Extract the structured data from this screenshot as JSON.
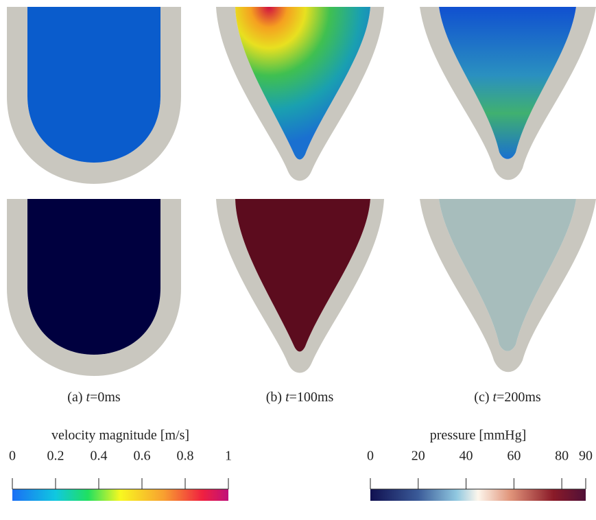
{
  "captions": [
    {
      "tag": "(a)",
      "var": "t",
      "rest": "=0ms"
    },
    {
      "tag": "(b)",
      "var": "t",
      "rest": "=100ms"
    },
    {
      "tag": "(c)",
      "var": "t",
      "rest": "=200ms"
    }
  ],
  "colorbars": [
    {
      "label": "velocity magnitude [m/s]",
      "lim": [
        0,
        1
      ],
      "ticks": [
        0,
        0.2,
        0.4,
        0.6,
        0.8,
        1
      ]
    },
    {
      "label": "pressure [mmHg]",
      "lim": [
        0,
        90
      ],
      "ticks": [
        0,
        20,
        40,
        60,
        80,
        90
      ]
    }
  ]
}
